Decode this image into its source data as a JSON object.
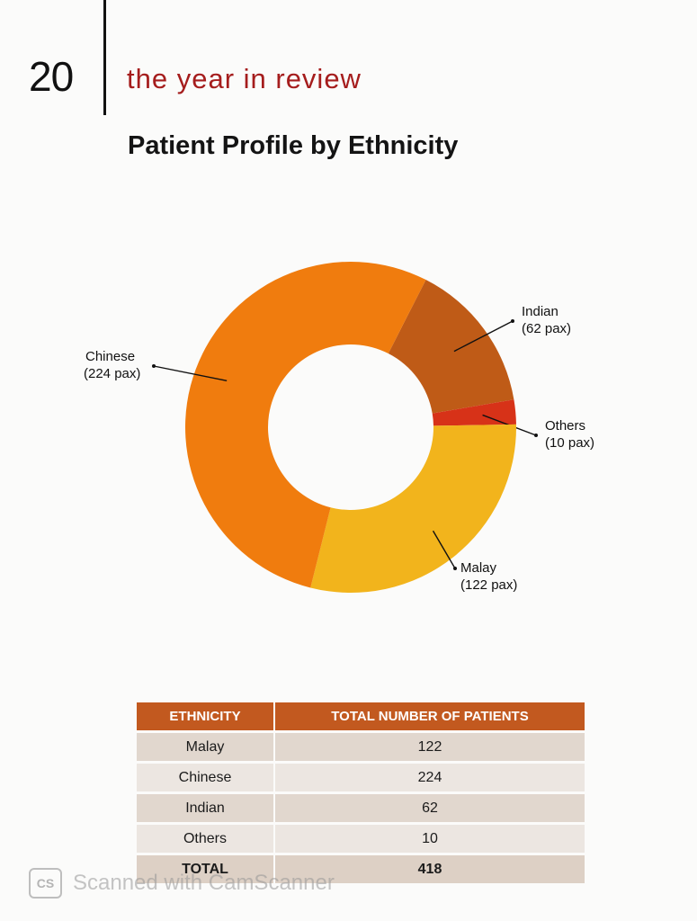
{
  "header": {
    "page_number": "20",
    "section_title": "the year in review"
  },
  "chart_data": {
    "type": "pie",
    "title": "Patient Profile by Ethnicity",
    "style": "donut",
    "slices": [
      {
        "label": "Indian",
        "value": 62,
        "label_text": "Indian",
        "pax_text": "(62 pax)",
        "color": "#bf5b17"
      },
      {
        "label": "Others",
        "value": 10,
        "label_text": "Others",
        "pax_text": "(10 pax)",
        "color": "#d73218"
      },
      {
        "label": "Malay",
        "value": 122,
        "label_text": "Malay",
        "pax_text": "(122 pax)",
        "color": "#f2b41c"
      },
      {
        "label": "Chinese",
        "value": 224,
        "label_text": "Chinese",
        "pax_text": "(224 pax)",
        "color": "#f07c0e"
      }
    ]
  },
  "table": {
    "headers": [
      "ETHNICITY",
      "TOTAL NUMBER OF PATIENTS"
    ],
    "rows": [
      [
        "Malay",
        "122"
      ],
      [
        "Chinese",
        "224"
      ],
      [
        "Indian",
        "62"
      ],
      [
        "Others",
        "10"
      ]
    ],
    "total": [
      "TOTAL",
      "418"
    ]
  },
  "watermark": {
    "icon_text": "CS",
    "text": "Scanned with CamScanner"
  }
}
